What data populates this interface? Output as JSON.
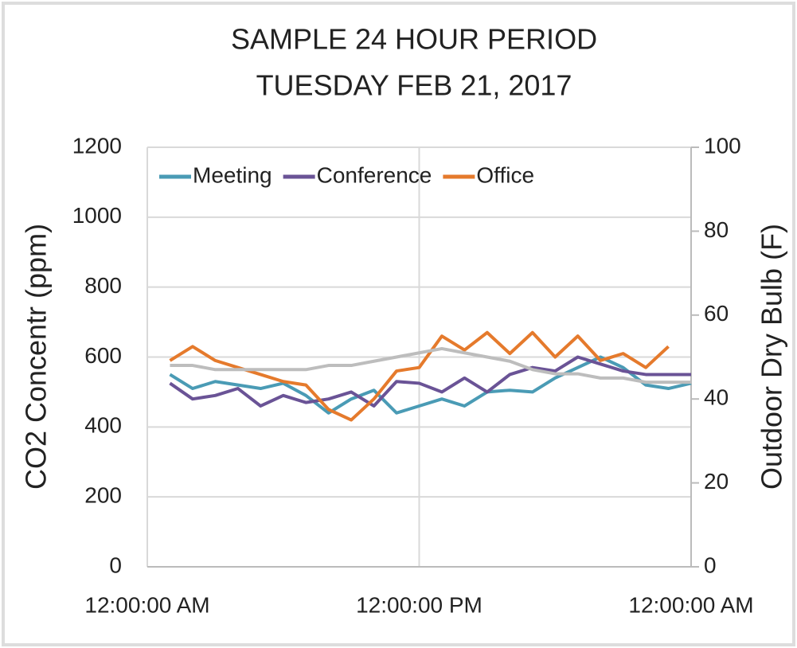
{
  "chart_data": {
    "type": "line",
    "title": "SAMPLE 24 HOUR PERIOD",
    "subtitle": "TUESDAY FEB 21, 2017",
    "y_label": "CO2 Concentr (ppm)",
    "y2_label": "Outdoor Dry Bulb (F)",
    "x": [
      1,
      2,
      3,
      4,
      5,
      6,
      7,
      8,
      9,
      10,
      11,
      12,
      13,
      14,
      15,
      16,
      17,
      18,
      19,
      20,
      21,
      22,
      23,
      24
    ],
    "xlim": [
      0,
      24
    ],
    "xticks": [
      {
        "value": 0,
        "label": "12:00:00 AM"
      },
      {
        "value": 12,
        "label": "12:00:00 PM"
      },
      {
        "value": 24,
        "label": "12:00:00 AM"
      }
    ],
    "ylim": [
      0,
      1200
    ],
    "yticks": [
      0,
      200,
      400,
      600,
      800,
      1000,
      1200
    ],
    "y2lim": [
      0,
      100
    ],
    "y2ticks": [
      0,
      20,
      40,
      60,
      80,
      100
    ],
    "grid": true,
    "legend": "top",
    "series": [
      {
        "name": "Meeting",
        "color": "#4a9bb5",
        "values": [
          550,
          510,
          530,
          520,
          510,
          525,
          490,
          440,
          480,
          505,
          440,
          460,
          480,
          460,
          500,
          505,
          500,
          540,
          570,
          600,
          570,
          520,
          510,
          525
        ]
      },
      {
        "name": "Conference",
        "color": "#6a5396",
        "values": [
          525,
          480,
          490,
          510,
          460,
          490,
          470,
          480,
          500,
          460,
          530,
          525,
          500,
          540,
          500,
          550,
          570,
          560,
          600,
          580,
          560,
          550,
          550,
          550
        ]
      },
      {
        "name": "Office",
        "color": "#e57a2c",
        "values": [
          590,
          630,
          590,
          570,
          550,
          530,
          520,
          450,
          420,
          480,
          560,
          570,
          660,
          620,
          670,
          610,
          670,
          600,
          660,
          590,
          610,
          570,
          630,
          null
        ]
      },
      {
        "color": "#bdbdbd",
        "axis": "y2",
        "values": [
          48,
          48,
          47,
          47,
          47,
          47,
          47,
          48,
          48,
          49,
          50,
          51,
          52,
          51,
          50,
          49,
          47,
          46,
          46,
          45,
          45,
          44,
          44,
          44
        ]
      }
    ]
  }
}
